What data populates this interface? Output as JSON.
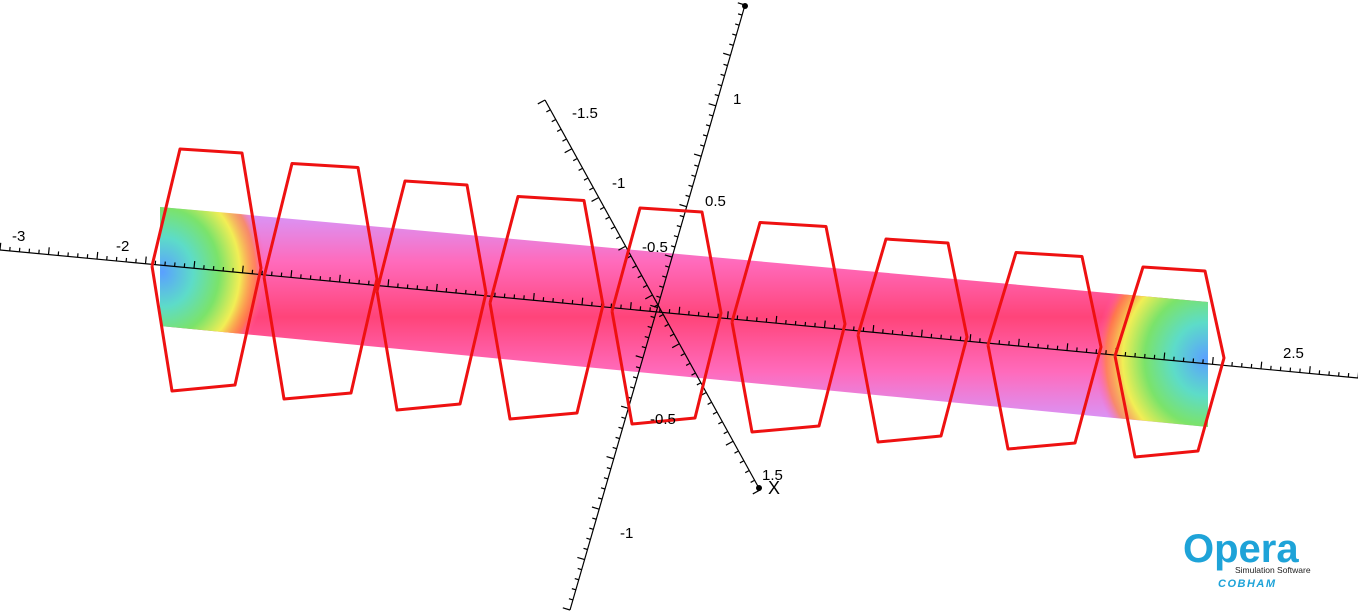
{
  "tick_labels": {
    "main_axis": [
      "-3",
      "-2",
      "2.5"
    ],
    "diag_axis": [
      "-1.5",
      "-1",
      "-0.5",
      "1.5"
    ],
    "vert_axis": [
      "1",
      "0.5",
      "-0.5",
      "-1"
    ]
  },
  "axis_name": "X",
  "colors": {
    "coil": "#ee1111",
    "field_center": "#ff3d7a",
    "field_edge": "#c77dff",
    "field_end_green": "#66e36b",
    "field_end_blue": "#6aa8ff",
    "logo": "#1ea3d8"
  },
  "logo": {
    "name": "Opera",
    "tagline": "Simulation Software",
    "brand": "COBHAM"
  },
  "coil_count": 9
}
